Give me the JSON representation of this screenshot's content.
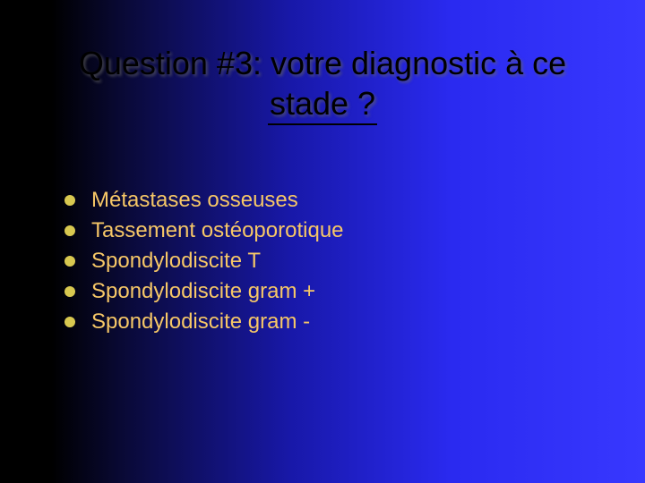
{
  "title": {
    "line1": "Question #3: votre diagnostic à ce",
    "line2": "stade ?",
    "color": "#000000",
    "fontsize": 36,
    "shadow_color": "rgba(100,100,100,0.7)"
  },
  "bullet": {
    "color": "#d8c850",
    "size": 12
  },
  "text": {
    "color": "#f6c767",
    "fontsize": 24
  },
  "items": [
    {
      "label": "Métastases osseuses"
    },
    {
      "label": "Tassement ostéoporotique"
    },
    {
      "label": "Spondylodiscite T"
    },
    {
      "label": "Spondylodiscite  gram +"
    },
    {
      "label": "Spondylodiscite gram -"
    }
  ],
  "background": {
    "gradient_from": "#000000",
    "gradient_to": "#3838ff"
  }
}
